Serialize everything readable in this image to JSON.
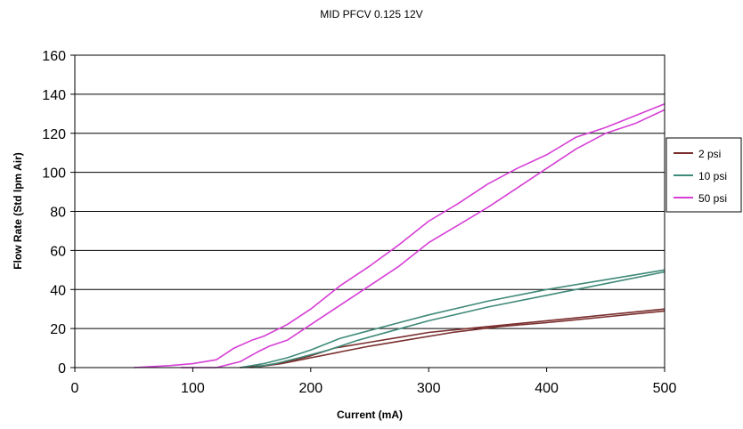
{
  "chart_data": {
    "type": "line",
    "title": "MID PFCV  0.125 12V",
    "xlabel": "Current (mA)",
    "ylabel": "Flow Rate (Std lpm Air)",
    "xlim": [
      0,
      500
    ],
    "ylim": [
      0,
      160
    ],
    "x_ticks": [
      0,
      100,
      200,
      300,
      400,
      500
    ],
    "y_ticks": [
      0,
      20,
      40,
      60,
      80,
      100,
      120,
      140,
      160
    ],
    "grid": "horizontal",
    "legend_position": "right",
    "series": [
      {
        "name": "2 psi",
        "color": "#7a2e2e",
        "loops": [
          [
            [
              140,
              0
            ],
            [
              160,
              1
            ],
            [
              180,
              3
            ],
            [
              200,
              6
            ],
            [
              220,
              10
            ],
            [
              250,
              13
            ],
            [
              280,
              16
            ],
            [
              300,
              18
            ],
            [
              350,
              21
            ],
            [
              400,
              24
            ],
            [
              450,
              27
            ],
            [
              500,
              30
            ]
          ],
          [
            [
              150,
              0
            ],
            [
              175,
              2
            ],
            [
              200,
              5
            ],
            [
              225,
              8
            ],
            [
              250,
              11
            ],
            [
              280,
              14
            ],
            [
              320,
              18
            ],
            [
              360,
              21
            ],
            [
              400,
              23
            ],
            [
              450,
              26
            ],
            [
              500,
              29
            ]
          ]
        ]
      },
      {
        "name": "10 psi",
        "color": "#3f8a78",
        "loops": [
          [
            [
              140,
              0
            ],
            [
              160,
              2
            ],
            [
              180,
              5
            ],
            [
              200,
              9
            ],
            [
              225,
              15
            ],
            [
              250,
              19
            ],
            [
              275,
              23
            ],
            [
              300,
              27
            ],
            [
              350,
              34
            ],
            [
              400,
              40
            ],
            [
              450,
              45
            ],
            [
              500,
              50
            ]
          ],
          [
            [
              150,
              0
            ],
            [
              170,
              2
            ],
            [
              190,
              5
            ],
            [
              215,
              9
            ],
            [
              240,
              14
            ],
            [
              270,
              19
            ],
            [
              300,
              24
            ],
            [
              350,
              31
            ],
            [
              400,
              37
            ],
            [
              450,
              43
            ],
            [
              500,
              49
            ]
          ]
        ]
      },
      {
        "name": "50 psi",
        "color": "#d63fd6",
        "loops": [
          [
            [
              50,
              0
            ],
            [
              80,
              1
            ],
            [
              100,
              2
            ],
            [
              120,
              4
            ],
            [
              135,
              10
            ],
            [
              150,
              14
            ],
            [
              160,
              16
            ],
            [
              180,
              22
            ],
            [
              200,
              30
            ],
            [
              225,
              42
            ],
            [
              250,
              52
            ],
            [
              275,
              63
            ],
            [
              300,
              75
            ],
            [
              325,
              84
            ],
            [
              350,
              94
            ],
            [
              375,
              102
            ],
            [
              400,
              109
            ],
            [
              425,
              118
            ],
            [
              450,
              123
            ],
            [
              475,
              129
            ],
            [
              500,
              135
            ]
          ],
          [
            [
              90,
              0
            ],
            [
              120,
              0
            ],
            [
              140,
              3
            ],
            [
              155,
              8
            ],
            [
              165,
              11
            ],
            [
              180,
              14
            ],
            [
              200,
              22
            ],
            [
              225,
              32
            ],
            [
              250,
              42
            ],
            [
              275,
              52
            ],
            [
              300,
              64
            ],
            [
              325,
              73
            ],
            [
              350,
              82
            ],
            [
              375,
              92
            ],
            [
              400,
              102
            ],
            [
              425,
              112
            ],
            [
              450,
              120
            ],
            [
              475,
              125
            ],
            [
              500,
              132
            ]
          ]
        ]
      }
    ]
  }
}
